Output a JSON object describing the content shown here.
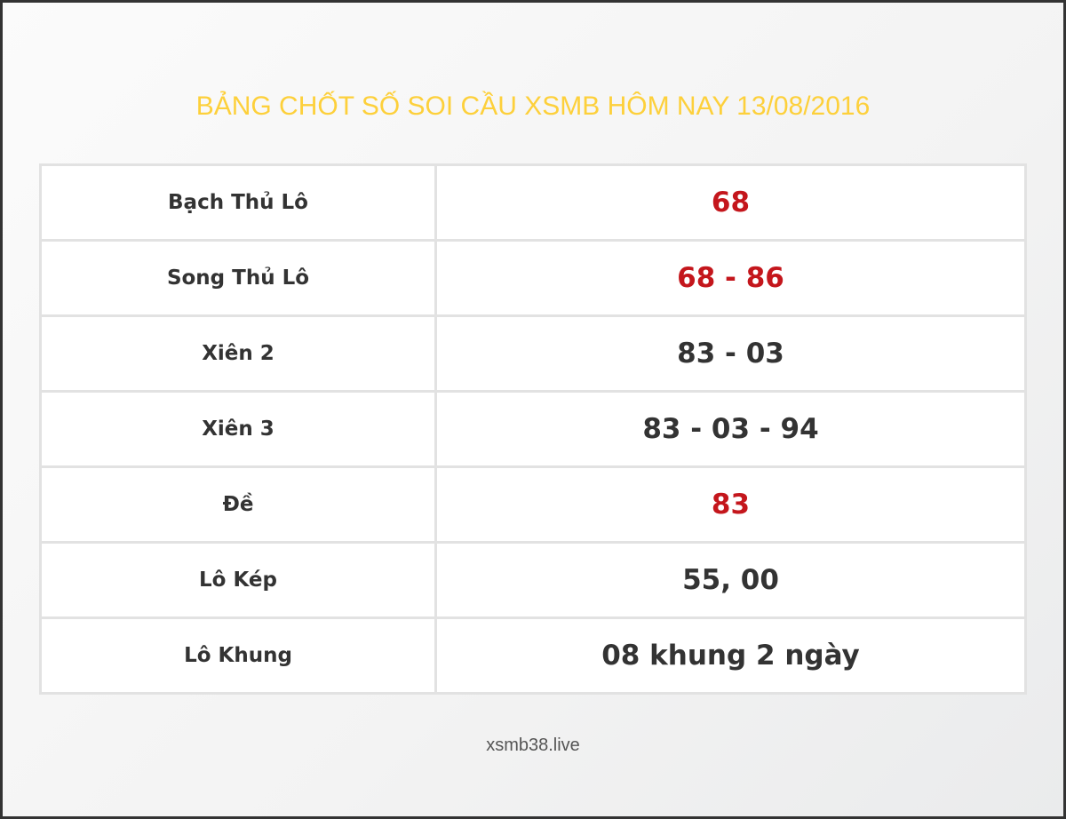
{
  "title": "BẢNG CHỐT SỐ SOI CẦU XSMB HÔM NAY 13/08/2016",
  "highlight_color": "#c4161c",
  "title_color": "#fdd03b",
  "rows": [
    {
      "label": "Bạch Thủ Lô",
      "value": "68",
      "highlight": true
    },
    {
      "label": "Song Thủ Lô",
      "value": "68 - 86",
      "highlight": true
    },
    {
      "label": "Xiên 2",
      "value": "83 - 03",
      "highlight": false
    },
    {
      "label": "Xiên 3",
      "value": "83 - 03 - 94",
      "highlight": false
    },
    {
      "label": "Đề",
      "value": "83",
      "highlight": true
    },
    {
      "label": "Lô Kép",
      "value": "55, 00",
      "highlight": false
    },
    {
      "label": "Lô Khung",
      "value": "08 khung 2 ngày",
      "highlight": false
    }
  ],
  "footer": "xsmb38.live"
}
